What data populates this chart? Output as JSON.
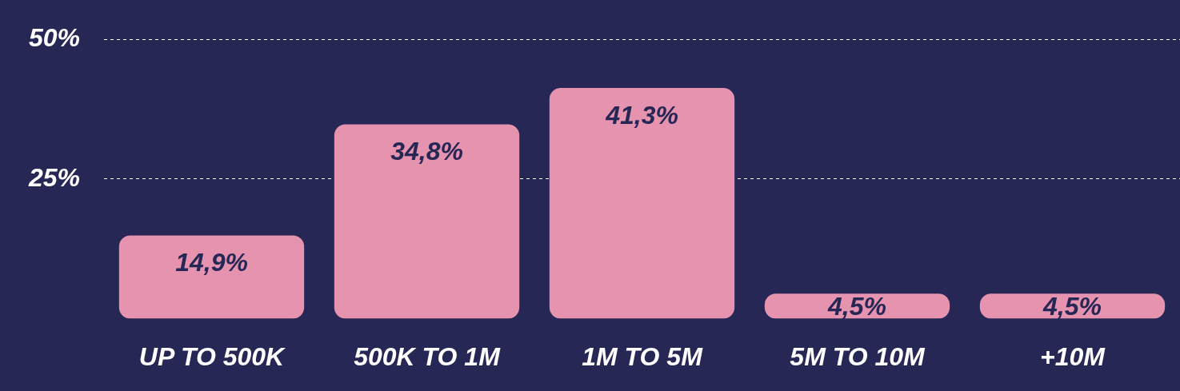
{
  "chart_data": {
    "type": "bar",
    "categories": [
      "UP TO 500K",
      "500K TO 1M",
      "1M TO 5M",
      "5M TO 10M",
      "+10M"
    ],
    "values": [
      14.9,
      34.8,
      41.3,
      4.5,
      4.5
    ],
    "value_labels": [
      "14,9%",
      "34,8%",
      "41,3%",
      "4,5%",
      "4,5%"
    ],
    "color": "#e693b0",
    "ylim": [
      0,
      50
    ],
    "yticks": [
      {
        "value": 25,
        "label": "25%"
      },
      {
        "value": 50,
        "label": "50%"
      }
    ],
    "grid": "y"
  }
}
